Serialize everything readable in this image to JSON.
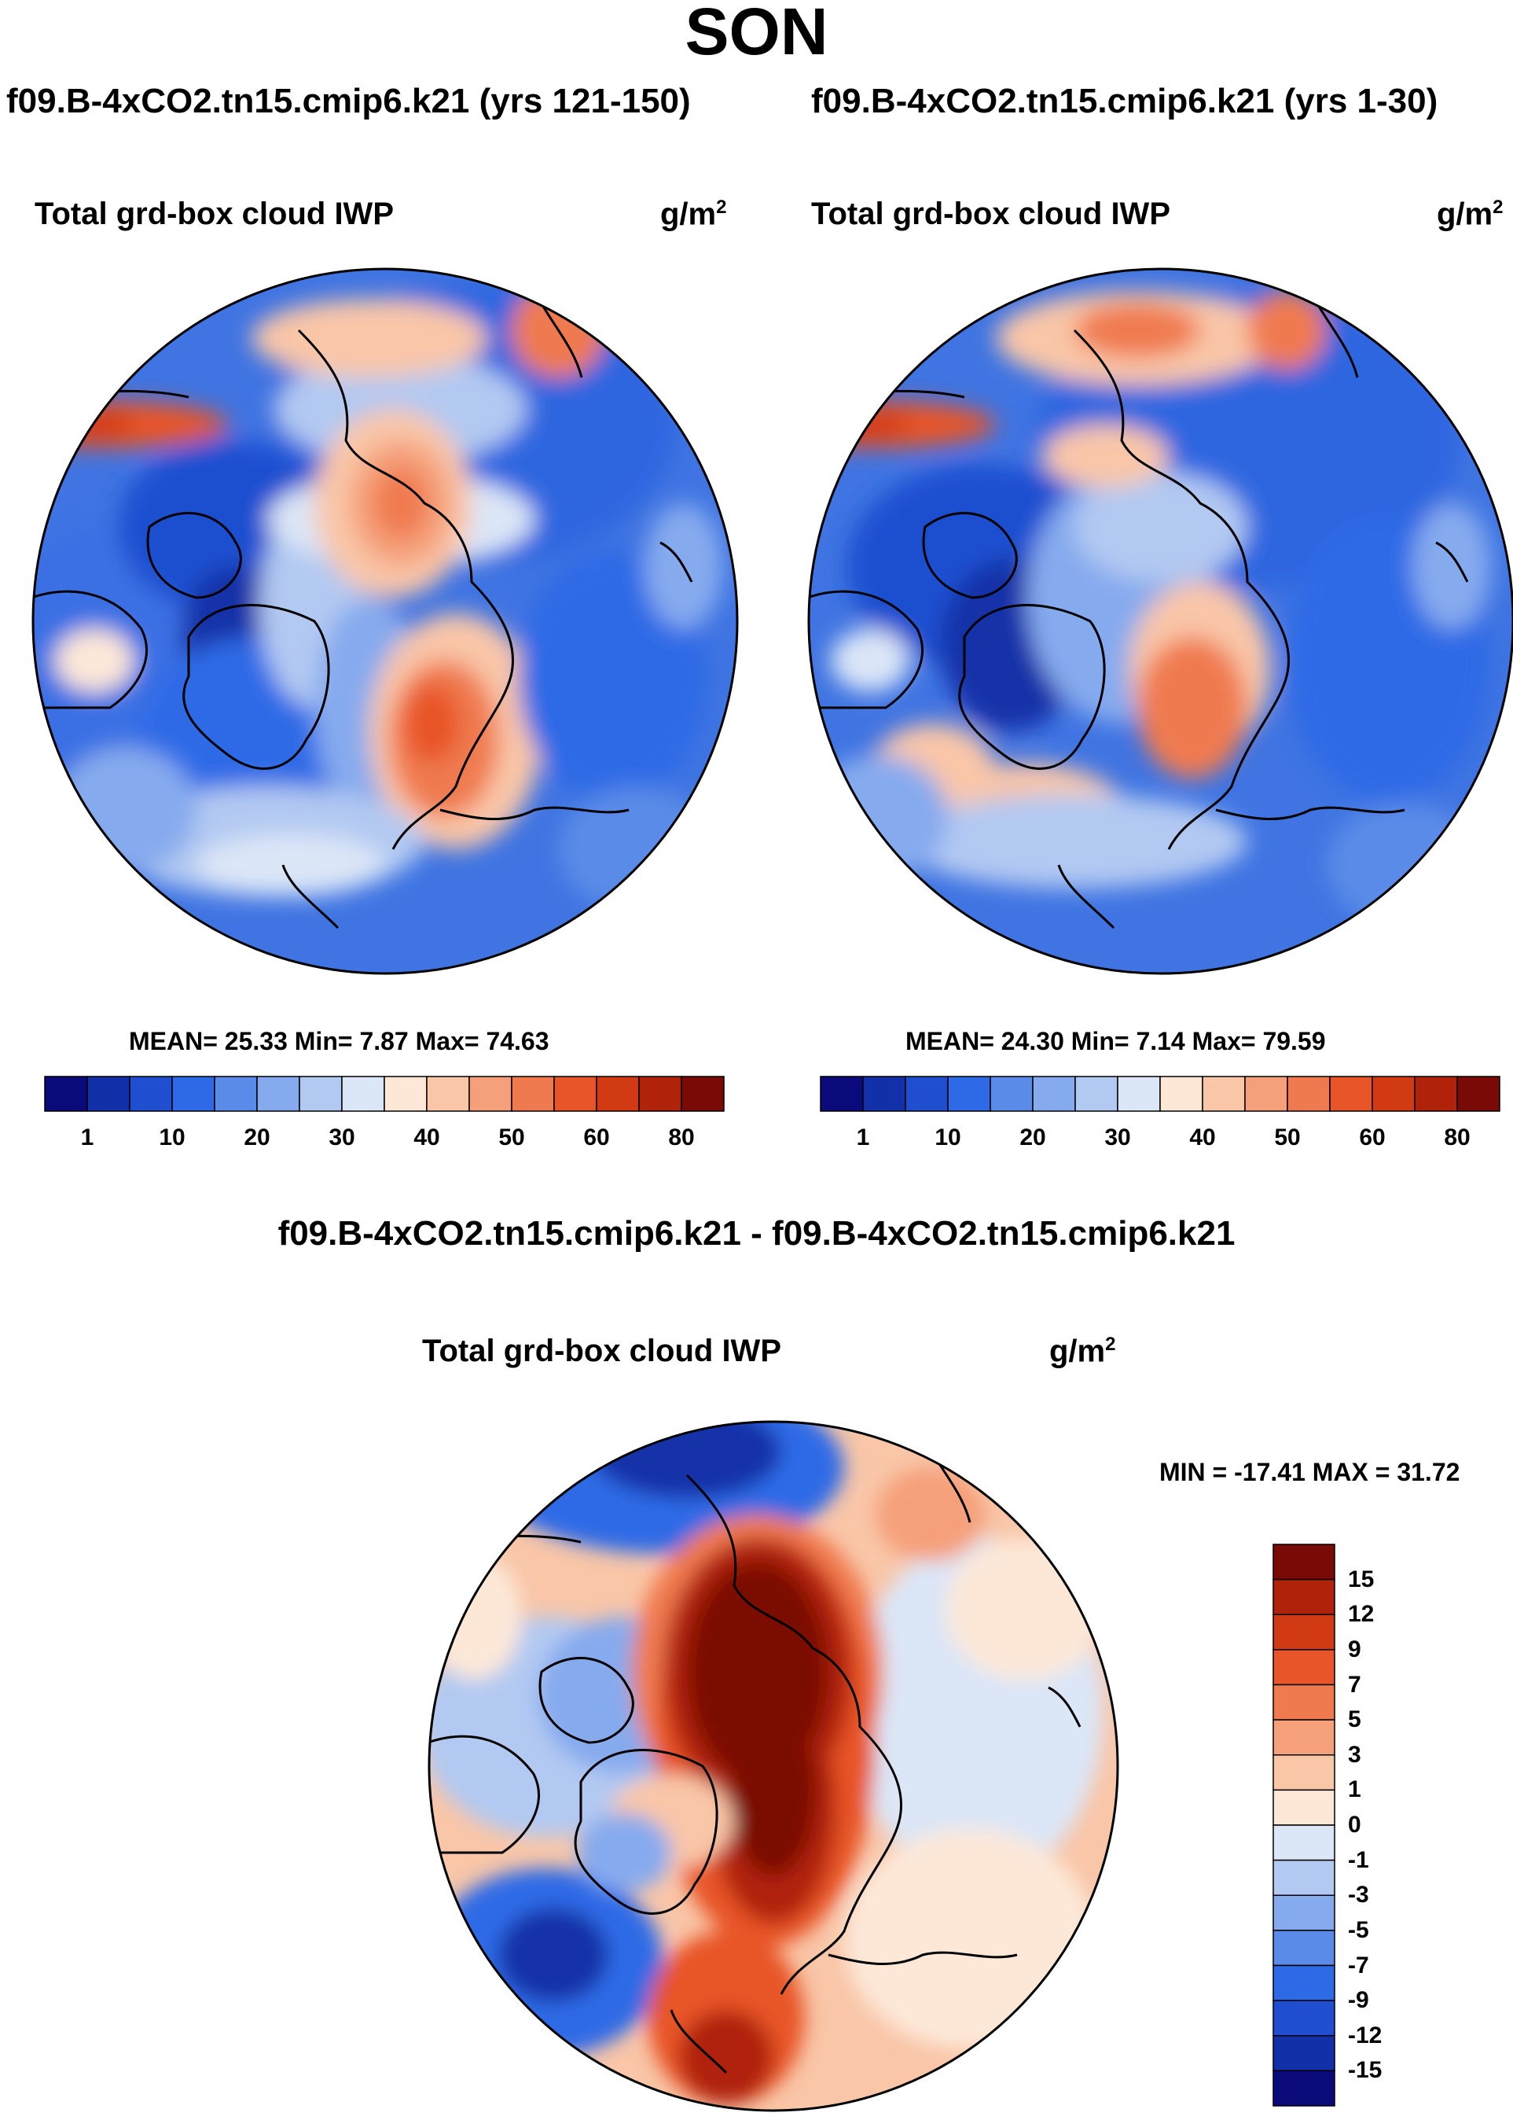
{
  "figure": {
    "season": "SON",
    "colors": {
      "seq": [
        "#0a0a7a",
        "#1230a8",
        "#1f4fd0",
        "#2e6ae6",
        "#5a8be8",
        "#86aaee",
        "#b2c9f2",
        "#dbe6f7",
        "#fde8d8",
        "#f9c6a8",
        "#f5a07a",
        "#f07a50",
        "#e85528",
        "#d23a14",
        "#b0220a",
        "#7a0a05"
      ],
      "div": [
        "#7a0a05",
        "#b0220a",
        "#d23a14",
        "#e85528",
        "#f07a50",
        "#f5a07a",
        "#f9c6a8",
        "#fde8d8",
        "#dbe6f7",
        "#b2c9f2",
        "#86aaee",
        "#5a8be8",
        "#2e6ae6",
        "#1f4fd0",
        "#1230a8",
        "#0a0a7a"
      ],
      "land_outline": "#000000"
    }
  },
  "panels": [
    {
      "case_title": "f09.B-4xCO2.tn15.cmip6.k21 (yrs 121-150)",
      "var_label": "Total grd-box cloud IWP",
      "unit_base": "g/m",
      "unit_sup": "2",
      "stats_text": "MEAN=  25.33  Min=   7.87  Max=  74.63",
      "colorbar_ticks": [
        "1",
        "10",
        "20",
        "30",
        "40",
        "50",
        "60",
        "80"
      ]
    },
    {
      "case_title": "f09.B-4xCO2.tn15.cmip6.k21 (yrs 1-30)",
      "var_label": "Total grd-box cloud IWP",
      "unit_base": "g/m",
      "unit_sup": "2",
      "stats_text": "MEAN=  24.30  Min=   7.14  Max=  79.59",
      "colorbar_ticks": [
        "1",
        "10",
        "20",
        "30",
        "40",
        "50",
        "60",
        "80"
      ]
    }
  ],
  "diff": {
    "title": "f09.B-4xCO2.tn15.cmip6.k21 - f09.B-4xCO2.tn15.cmip6.k21",
    "var_label": "Total grd-box cloud IWP",
    "unit_base": "g/m",
    "unit_sup": "2",
    "minmax_text": "MIN = -17.41 MAX =  31.72",
    "colorbar_ticks": [
      "15",
      "12",
      "9",
      "7",
      "5",
      "3",
      "1",
      "0",
      "-1",
      "-3",
      "-5",
      "-7",
      "-9",
      "-12",
      "-15"
    ]
  }
}
